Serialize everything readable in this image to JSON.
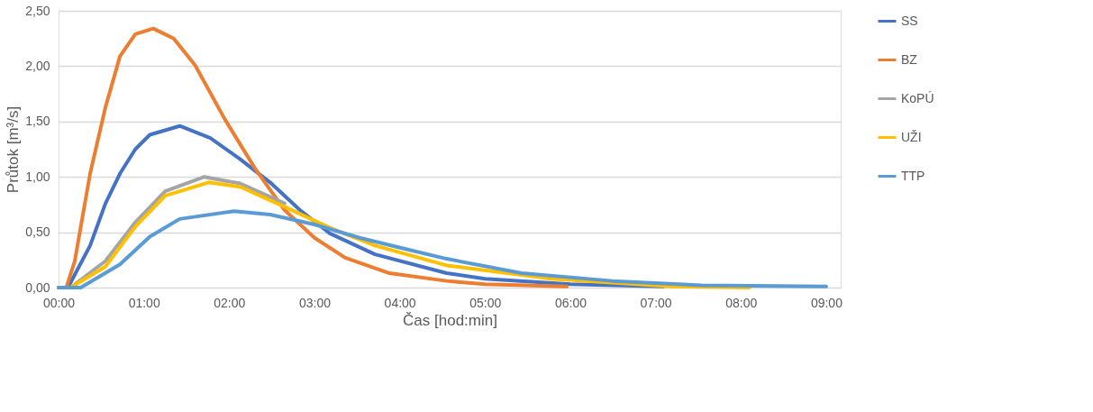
{
  "chart_data": {
    "type": "line",
    "xlabel": "Čas [hod:min]",
    "ylabel": "Průtok [m³/s]",
    "xlim": [
      0,
      9.17
    ],
    "ylim": [
      0,
      2.5
    ],
    "xticks": [
      {
        "value": 0,
        "label": "00:00"
      },
      {
        "value": 1,
        "label": "01:00"
      },
      {
        "value": 2,
        "label": "02:00"
      },
      {
        "value": 3,
        "label": "03:00"
      },
      {
        "value": 4,
        "label": "04:00"
      },
      {
        "value": 5,
        "label": "05:00"
      },
      {
        "value": 6,
        "label": "06:00"
      },
      {
        "value": 7,
        "label": "07:00"
      },
      {
        "value": 8,
        "label": "08:00"
      },
      {
        "value": 9,
        "label": "09:00"
      }
    ],
    "yticks": [
      {
        "value": 0,
        "label": "0,00"
      },
      {
        "value": 0.5,
        "label": "0,50"
      },
      {
        "value": 1,
        "label": "1,00"
      },
      {
        "value": 1.5,
        "label": "1,50"
      },
      {
        "value": 2,
        "label": "2,00"
      },
      {
        "value": 2.5,
        "label": "2,50"
      }
    ],
    "grid": "y",
    "legend": "right",
    "marker": "none",
    "line_style": "solid",
    "series": [
      {
        "name": "SS",
        "color": "#4472c4",
        "x": [
          0,
          0.11,
          0.37,
          0.55,
          0.72,
          0.9,
          1.07,
          1.42,
          1.78,
          2.13,
          2.48,
          2.83,
          3.18,
          3.71,
          4.55,
          5.0,
          6.0,
          7.09
        ],
        "values": [
          0,
          0,
          0.38,
          0.76,
          1.03,
          1.25,
          1.38,
          1.46,
          1.35,
          1.16,
          0.95,
          0.7,
          0.49,
          0.3,
          0.13,
          0.08,
          0.03,
          0.01
        ]
      },
      {
        "name": "BZ",
        "color": "#ed7d31",
        "x": [
          0,
          0.09,
          0.19,
          0.37,
          0.55,
          0.72,
          0.9,
          1.11,
          1.35,
          1.6,
          1.95,
          2.3,
          2.65,
          3.0,
          3.36,
          3.88,
          4.55,
          5.0,
          5.96
        ],
        "values": [
          0,
          0,
          0.24,
          1.03,
          1.63,
          2.09,
          2.29,
          2.34,
          2.25,
          2.01,
          1.52,
          1.08,
          0.7,
          0.45,
          0.27,
          0.13,
          0.06,
          0.03,
          0.01
        ]
      },
      {
        "name": "KoPÚ",
        "color": "#a5a5a5",
        "x": [
          0,
          0.14,
          0.55,
          0.9,
          1.25,
          1.71,
          2.13,
          2.65
        ],
        "values": [
          0,
          0,
          0.24,
          0.59,
          0.87,
          1.0,
          0.94,
          0.76
        ]
      },
      {
        "name": "UŽI",
        "color": "#ffc000",
        "x": [
          0,
          0.14,
          0.55,
          0.9,
          1.25,
          1.76,
          2.13,
          2.65,
          3.18,
          3.71,
          4.55,
          5.78,
          7.19,
          8.1
        ],
        "values": [
          0,
          0,
          0.19,
          0.55,
          0.83,
          0.95,
          0.91,
          0.73,
          0.54,
          0.38,
          0.2,
          0.08,
          0.01,
          0.0
        ]
      },
      {
        "name": "TTP",
        "color": "#5b9bd5",
        "x": [
          0,
          0.26,
          0.72,
          1.07,
          1.42,
          2.06,
          2.48,
          3.0,
          3.53,
          4.06,
          4.55,
          5.43,
          6.49,
          7.54,
          9.0
        ],
        "values": [
          0,
          0,
          0.21,
          0.46,
          0.62,
          0.69,
          0.66,
          0.57,
          0.45,
          0.35,
          0.26,
          0.13,
          0.06,
          0.02,
          0.01
        ]
      }
    ]
  }
}
